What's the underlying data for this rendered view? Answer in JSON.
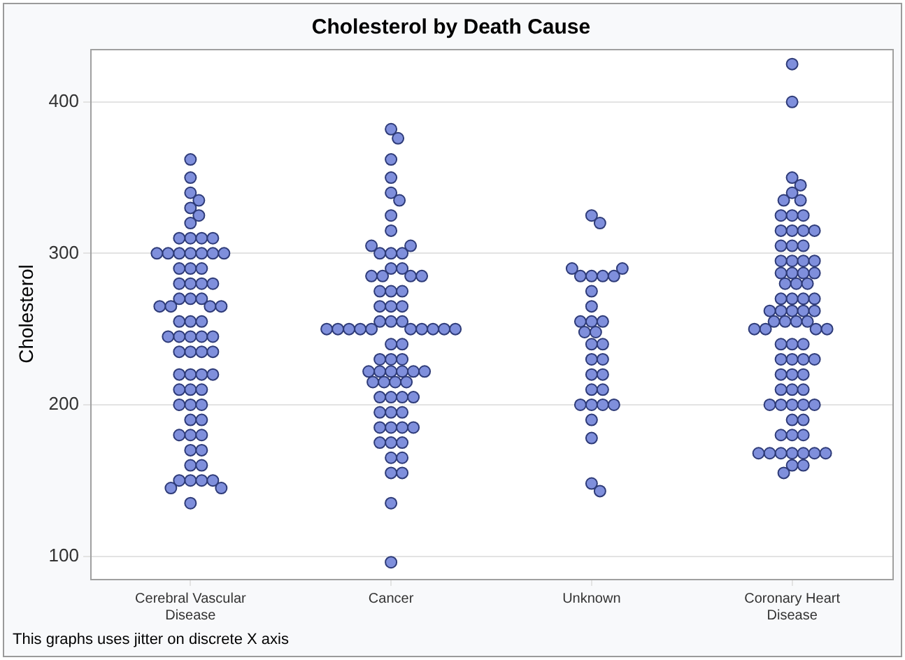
{
  "chart_data": {
    "type": "scatter",
    "title": "Cholesterol by Death Cause",
    "ylabel": "Cholesterol",
    "categories": [
      "Cerebral Vascular Disease",
      "Cancer",
      "Unknown",
      "Coronary Heart Disease"
    ],
    "ylim": [
      85,
      435
    ],
    "yticks": [
      100,
      200,
      300,
      400
    ],
    "grid": "y",
    "marker": "circle",
    "annotations": [
      "This graphs uses jitter on discrete X axis"
    ],
    "series": [
      {
        "color": "#7f8fdc",
        "x": [
          "Cerebral Vascular Disease",
          "Cerebral Vascular Disease",
          "Cerebral Vascular Disease",
          "Cerebral Vascular Disease",
          "Cerebral Vascular Disease",
          "Cerebral Vascular Disease",
          "Cerebral Vascular Disease",
          "Cerebral Vascular Disease",
          "Cerebral Vascular Disease",
          "Cerebral Vascular Disease",
          "Cerebral Vascular Disease",
          "Cerebral Vascular Disease",
          "Cerebral Vascular Disease",
          "Cerebral Vascular Disease",
          "Cerebral Vascular Disease",
          "Cerebral Vascular Disease",
          "Cerebral Vascular Disease",
          "Cerebral Vascular Disease",
          "Cerebral Vascular Disease",
          "Cerebral Vascular Disease",
          "Cerebral Vascular Disease",
          "Cerebral Vascular Disease",
          "Cerebral Vascular Disease",
          "Cerebral Vascular Disease",
          "Cerebral Vascular Disease",
          "Cerebral Vascular Disease",
          "Cerebral Vascular Disease",
          "Cerebral Vascular Disease",
          "Cerebral Vascular Disease",
          "Cerebral Vascular Disease",
          "Cerebral Vascular Disease",
          "Cerebral Vascular Disease",
          "Cerebral Vascular Disease",
          "Cerebral Vascular Disease",
          "Cerebral Vascular Disease",
          "Cerebral Vascular Disease",
          "Cerebral Vascular Disease",
          "Cerebral Vascular Disease",
          "Cerebral Vascular Disease",
          "Cerebral Vascular Disease",
          "Cerebral Vascular Disease",
          "Cerebral Vascular Disease",
          "Cerebral Vascular Disease",
          "Cerebral Vascular Disease",
          "Cerebral Vascular Disease",
          "Cerebral Vascular Disease",
          "Cerebral Vascular Disease",
          "Cerebral Vascular Disease",
          "Cerebral Vascular Disease",
          "Cerebral Vascular Disease",
          "Cerebral Vascular Disease",
          "Cerebral Vascular Disease",
          "Cerebral Vascular Disease",
          "Cerebral Vascular Disease",
          "Cerebral Vascular Disease",
          "Cerebral Vascular Disease",
          "Cerebral Vascular Disease",
          "Cerebral Vascular Disease",
          "Cerebral Vascular Disease",
          "Cerebral Vascular Disease",
          "Cerebral Vascular Disease",
          "Cerebral Vascular Disease",
          "Cerebral Vascular Disease",
          "Cerebral Vascular Disease",
          "Cerebral Vascular Disease",
          "Cerebral Vascular Disease",
          "Cerebral Vascular Disease",
          "Cerebral Vascular Disease",
          "Cerebral Vascular Disease",
          "Cerebral Vascular Disease"
        ],
        "values": [
          362,
          350,
          340,
          335,
          330,
          325,
          320,
          300,
          300,
          300,
          300,
          300,
          300,
          300,
          310,
          310,
          310,
          310,
          290,
          290,
          290,
          280,
          280,
          280,
          280,
          270,
          270,
          270,
          265,
          265,
          265,
          265,
          255,
          255,
          255,
          245,
          245,
          245,
          245,
          245,
          235,
          235,
          235,
          235,
          220,
          220,
          220,
          220,
          210,
          210,
          210,
          200,
          200,
          200,
          190,
          190,
          180,
          180,
          180,
          170,
          170,
          160,
          160,
          150,
          150,
          150,
          150,
          145,
          145,
          135
        ]
      },
      {
        "color": "#7f8fdc",
        "x": [
          "Cancer",
          "Cancer",
          "Cancer",
          "Cancer",
          "Cancer",
          "Cancer",
          "Cancer",
          "Cancer",
          "Cancer",
          "Cancer",
          "Cancer",
          "Cancer",
          "Cancer",
          "Cancer",
          "Cancer",
          "Cancer",
          "Cancer",
          "Cancer",
          "Cancer",
          "Cancer",
          "Cancer",
          "Cancer",
          "Cancer",
          "Cancer",
          "Cancer",
          "Cancer",
          "Cancer",
          "Cancer",
          "Cancer",
          "Cancer",
          "Cancer",
          "Cancer",
          "Cancer",
          "Cancer",
          "Cancer",
          "Cancer",
          "Cancer",
          "Cancer",
          "Cancer",
          "Cancer",
          "Cancer",
          "Cancer",
          "Cancer",
          "Cancer",
          "Cancer",
          "Cancer",
          "Cancer",
          "Cancer",
          "Cancer",
          "Cancer",
          "Cancer",
          "Cancer",
          "Cancer",
          "Cancer",
          "Cancer",
          "Cancer",
          "Cancer",
          "Cancer",
          "Cancer",
          "Cancer",
          "Cancer",
          "Cancer",
          "Cancer",
          "Cancer",
          "Cancer",
          "Cancer",
          "Cancer",
          "Cancer",
          "Cancer",
          "Cancer",
          "Cancer",
          "Cancer",
          "Cancer"
        ],
        "values": [
          382,
          376,
          362,
          350,
          340,
          335,
          325,
          315,
          300,
          300,
          300,
          305,
          305,
          290,
          290,
          285,
          285,
          285,
          285,
          275,
          275,
          275,
          265,
          265,
          265,
          255,
          255,
          255,
          250,
          250,
          250,
          250,
          250,
          250,
          250,
          250,
          250,
          250,
          240,
          240,
          230,
          230,
          230,
          222,
          222,
          222,
          222,
          222,
          222,
          215,
          215,
          215,
          215,
          205,
          205,
          205,
          205,
          195,
          195,
          195,
          185,
          185,
          185,
          185,
          175,
          175,
          175,
          165,
          165,
          155,
          155,
          135,
          96
        ]
      },
      {
        "color": "#7f8fdc",
        "x": [
          "Unknown",
          "Unknown",
          "Unknown",
          "Unknown",
          "Unknown",
          "Unknown",
          "Unknown",
          "Unknown",
          "Unknown",
          "Unknown",
          "Unknown",
          "Unknown",
          "Unknown",
          "Unknown",
          "Unknown",
          "Unknown",
          "Unknown",
          "Unknown",
          "Unknown",
          "Unknown",
          "Unknown",
          "Unknown",
          "Unknown",
          "Unknown",
          "Unknown",
          "Unknown",
          "Unknown",
          "Unknown",
          "Unknown",
          "Unknown",
          "Unknown"
        ],
        "values": [
          325,
          320,
          285,
          285,
          285,
          285,
          290,
          290,
          275,
          265,
          255,
          255,
          255,
          248,
          248,
          240,
          240,
          230,
          230,
          220,
          220,
          210,
          210,
          200,
          200,
          200,
          200,
          190,
          178,
          148,
          143
        ]
      },
      {
        "color": "#7f8fdc",
        "x": [
          "Coronary Heart Disease",
          "Coronary Heart Disease",
          "Coronary Heart Disease",
          "Coronary Heart Disease",
          "Coronary Heart Disease",
          "Coronary Heart Disease",
          "Coronary Heart Disease",
          "Coronary Heart Disease",
          "Coronary Heart Disease",
          "Coronary Heart Disease",
          "Coronary Heart Disease",
          "Coronary Heart Disease",
          "Coronary Heart Disease",
          "Coronary Heart Disease",
          "Coronary Heart Disease",
          "Coronary Heart Disease",
          "Coronary Heart Disease",
          "Coronary Heart Disease",
          "Coronary Heart Disease",
          "Coronary Heart Disease",
          "Coronary Heart Disease",
          "Coronary Heart Disease",
          "Coronary Heart Disease",
          "Coronary Heart Disease",
          "Coronary Heart Disease",
          "Coronary Heart Disease",
          "Coronary Heart Disease",
          "Coronary Heart Disease",
          "Coronary Heart Disease",
          "Coronary Heart Disease",
          "Coronary Heart Disease",
          "Coronary Heart Disease",
          "Coronary Heart Disease",
          "Coronary Heart Disease",
          "Coronary Heart Disease",
          "Coronary Heart Disease",
          "Coronary Heart Disease",
          "Coronary Heart Disease",
          "Coronary Heart Disease",
          "Coronary Heart Disease",
          "Coronary Heart Disease",
          "Coronary Heart Disease",
          "Coronary Heart Disease",
          "Coronary Heart Disease",
          "Coronary Heart Disease",
          "Coronary Heart Disease",
          "Coronary Heart Disease",
          "Coronary Heart Disease",
          "Coronary Heart Disease",
          "Coronary Heart Disease",
          "Coronary Heart Disease",
          "Coronary Heart Disease",
          "Coronary Heart Disease",
          "Coronary Heart Disease",
          "Coronary Heart Disease",
          "Coronary Heart Disease",
          "Coronary Heart Disease",
          "Coronary Heart Disease",
          "Coronary Heart Disease",
          "Coronary Heart Disease",
          "Coronary Heart Disease",
          "Coronary Heart Disease",
          "Coronary Heart Disease",
          "Coronary Heart Disease",
          "Coronary Heart Disease",
          "Coronary Heart Disease",
          "Coronary Heart Disease",
          "Coronary Heart Disease",
          "Coronary Heart Disease",
          "Coronary Heart Disease",
          "Coronary Heart Disease",
          "Coronary Heart Disease",
          "Coronary Heart Disease",
          "Coronary Heart Disease",
          "Coronary Heart Disease",
          "Coronary Heart Disease",
          "Coronary Heart Disease",
          "Coronary Heart Disease"
        ],
        "values": [
          425,
          400,
          350,
          345,
          340,
          335,
          335,
          325,
          325,
          325,
          315,
          315,
          315,
          315,
          305,
          305,
          305,
          295,
          295,
          295,
          295,
          287,
          287,
          287,
          287,
          280,
          280,
          280,
          270,
          270,
          270,
          270,
          262,
          262,
          262,
          262,
          262,
          255,
          255,
          255,
          255,
          250,
          250,
          250,
          250,
          240,
          240,
          240,
          230,
          230,
          230,
          230,
          220,
          220,
          220,
          210,
          210,
          210,
          200,
          200,
          200,
          200,
          200,
          190,
          190,
          180,
          180,
          180,
          168,
          168,
          168,
          168,
          168,
          168,
          168,
          160,
          160,
          155
        ]
      }
    ]
  }
}
